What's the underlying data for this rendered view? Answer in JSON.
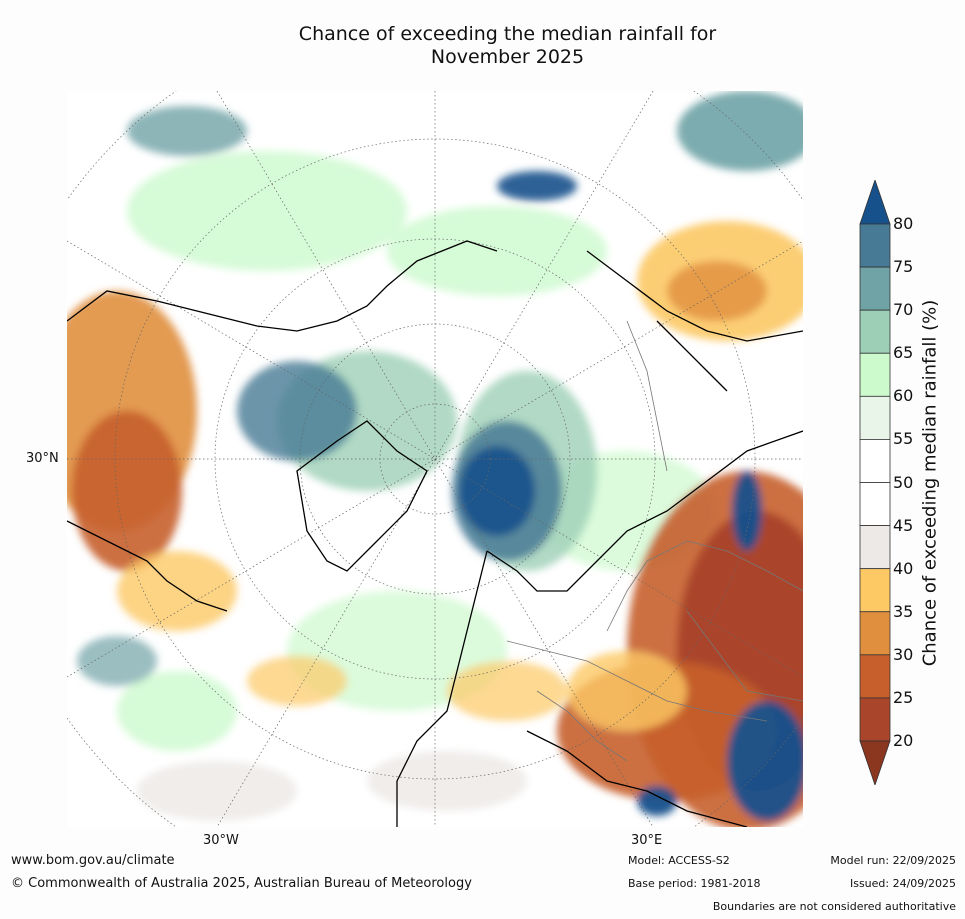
{
  "title": {
    "line1": "Chance of exceeding the median rainfall for",
    "line2": "November 2025"
  },
  "map": {
    "projection": "north-polar stereographic",
    "lat_labels": [
      "30°N"
    ],
    "lon_labels": [
      "30°W",
      "30°E"
    ]
  },
  "legend": {
    "label": "Chance of exceeding median rainfall (%)",
    "ticks": [
      "80",
      "75",
      "70",
      "65",
      "60",
      "55",
      "50",
      "45",
      "40",
      "35",
      "30",
      "25",
      "20"
    ],
    "colors_top_to_bottom": [
      "#17518c",
      "#477a95",
      "#6fa3a6",
      "#9dcfb7",
      "#ccfacd",
      "#eaf5ea",
      "#ffffff",
      "#ffffff",
      "#ece9e6",
      "#fcc965",
      "#e08f3e",
      "#c65f2c",
      "#a9452a",
      "#8b3720"
    ]
  },
  "footer": {
    "website": "www.bom.gov.au/climate",
    "copyright": "© Commonwealth of Australia 2025, Australian Bureau of Meteorology",
    "model": "Model: ACCESS-S2",
    "base_period": "Base period: 1981-2018",
    "model_run": "Model run: 22/09/2025",
    "issued": "Issued: 24/09/2025",
    "disclaimer": "Boundaries are not considered authoritative"
  }
}
